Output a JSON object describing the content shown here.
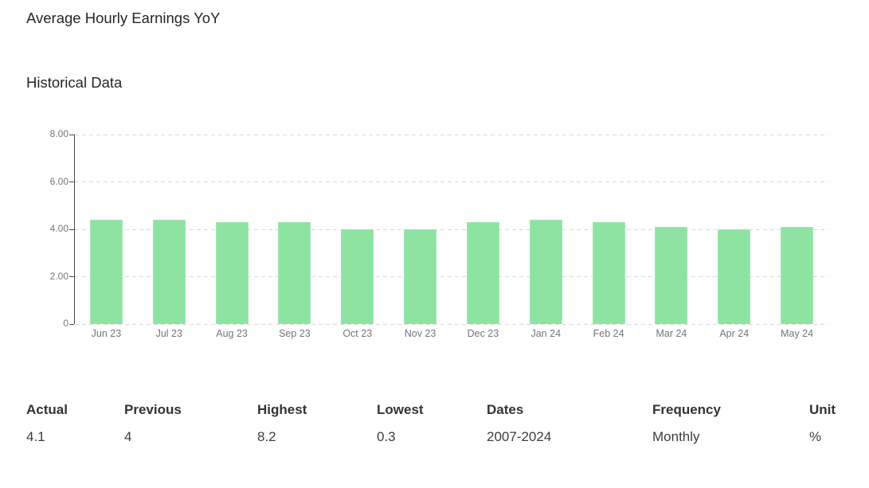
{
  "page": {
    "title": "Average Hourly Earnings YoY",
    "section_title": "Historical Data"
  },
  "chart_data": {
    "type": "bar",
    "title": "Historical Data",
    "categories": [
      "Jun 23",
      "Jul 23",
      "Aug 23",
      "Sep 23",
      "Oct 23",
      "Nov 23",
      "Dec 23",
      "Jan 24",
      "Feb 24",
      "Mar 24",
      "Apr 24",
      "May 24"
    ],
    "values": [
      4.4,
      4.4,
      4.3,
      4.3,
      4.0,
      4.0,
      4.3,
      4.4,
      4.3,
      4.1,
      4.0,
      4.1
    ],
    "xlabel": "",
    "ylabel": "",
    "ylim": [
      0,
      8
    ],
    "yticks": [
      {
        "value": 0,
        "label": "0"
      },
      {
        "value": 2,
        "label": "2.00"
      },
      {
        "value": 4,
        "label": "4.00"
      },
      {
        "value": 6,
        "label": "6.00"
      },
      {
        "value": 8,
        "label": "8.00"
      }
    ],
    "grid": "horizontal-dashed",
    "legend": "none",
    "colors": {
      "bar_fill": "#8ee3a2",
      "bar_border": "#a3e8b2",
      "axis": "#4a4a4a",
      "gridline": "#d9d9d9",
      "tick_label": "#757575"
    }
  },
  "summary": {
    "columns": [
      {
        "label": "Actual",
        "value": "4.1"
      },
      {
        "label": "Previous",
        "value": "4"
      },
      {
        "label": "Highest",
        "value": "8.2"
      },
      {
        "label": "Lowest",
        "value": "0.3"
      },
      {
        "label": "Dates",
        "value": "2007-2024"
      },
      {
        "label": "Frequency",
        "value": "Monthly"
      },
      {
        "label": "Unit",
        "value": "%"
      }
    ]
  }
}
